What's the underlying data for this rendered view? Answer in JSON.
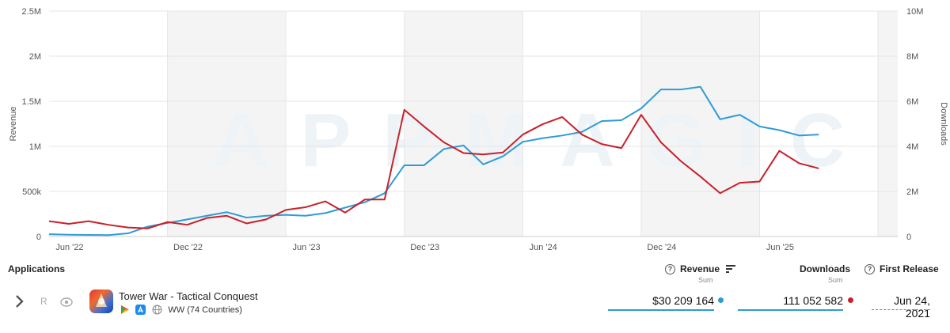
{
  "chart_data": {
    "type": "line",
    "watermark": "APPMAGIC",
    "x_tick_labels": [
      "Jun '22",
      "Dec '22",
      "Jun '23",
      "Dec '23",
      "Jun '24",
      "Dec '24",
      "Jun '25"
    ],
    "y_left": {
      "label": "Revenue",
      "ticks": [
        "0",
        "500k",
        "1M",
        "1.5M",
        "2M",
        "2.5M"
      ],
      "range": [
        0,
        2500000
      ]
    },
    "y_right": {
      "label": "Downloads",
      "ticks": [
        "0",
        "2M",
        "4M",
        "6M",
        "8M",
        "10M"
      ],
      "range": [
        0,
        10000000
      ]
    },
    "shaded_periods": [
      [
        6,
        12
      ],
      [
        18,
        24
      ],
      [
        30,
        36
      ],
      [
        42,
        43
      ]
    ],
    "month_range": [
      0,
      43
    ],
    "series": [
      {
        "name": "Revenue",
        "axis": "left",
        "color": "#2e9bd6",
        "x": [
          0,
          1,
          2,
          3,
          4,
          5,
          6,
          7,
          8,
          9,
          10,
          11,
          12,
          13,
          14,
          15,
          16,
          17,
          18,
          19,
          20,
          21,
          22,
          23,
          24,
          25,
          26,
          27,
          28,
          29,
          30,
          31,
          32,
          33,
          34,
          35,
          36,
          37,
          38,
          39,
          40,
          41,
          42,
          43
        ],
        "values": [
          25000,
          20000,
          18000,
          15000,
          35000,
          110000,
          150000,
          190000,
          230000,
          270000,
          210000,
          230000,
          240000,
          230000,
          260000,
          320000,
          380000,
          480000,
          790000,
          790000,
          970000,
          1010000,
          800000,
          890000,
          1050000,
          1090000,
          1120000,
          1160000,
          1280000,
          1290000,
          1420000,
          1630000,
          1630000,
          1660000,
          1300000,
          1350000,
          1220000,
          1180000,
          1120000,
          1130000,
          null,
          null,
          null,
          null
        ]
      },
      {
        "name": "Downloads",
        "axis": "right",
        "color": "#c8202a",
        "x": [
          0,
          1,
          2,
          3,
          4,
          5,
          6,
          7,
          8,
          9,
          10,
          11,
          12,
          13,
          14,
          15,
          16,
          17,
          18,
          19,
          20,
          21,
          22,
          23,
          24,
          25,
          26,
          27,
          28,
          29,
          30,
          31,
          32,
          33,
          34,
          35,
          36,
          37,
          38,
          39,
          40,
          41,
          42,
          43
        ],
        "values": [
          680000,
          560000,
          680000,
          520000,
          400000,
          360000,
          640000,
          520000,
          820000,
          920000,
          580000,
          760000,
          1180000,
          1300000,
          1560000,
          1060000,
          1640000,
          1640000,
          5620000,
          4880000,
          4180000,
          3700000,
          3640000,
          3730000,
          4520000,
          4980000,
          5300000,
          4520000,
          4100000,
          3920000,
          5400000,
          4180000,
          3350000,
          2660000,
          1920000,
          2380000,
          2440000,
          3800000,
          3250000,
          3020000,
          null,
          null,
          null,
          null
        ]
      }
    ]
  },
  "table": {
    "headers": {
      "applications": "Applications",
      "revenue": "Revenue",
      "revenue_sub": "Sum",
      "downloads": "Downloads",
      "downloads_sub": "Sum",
      "first_release": "First Release"
    },
    "row": {
      "expand_icon": "chevron-right-icon",
      "r_label": "R",
      "eye_icon": "eye-icon",
      "app_name": "Tower War - Tactical Conquest",
      "platforms": [
        "google-play-icon",
        "app-store-icon",
        "globe-icon"
      ],
      "region": "WW (74 Countries)",
      "revenue": "$30 209 164",
      "revenue_color": "#2e9bd6",
      "downloads": "111 052 582",
      "downloads_color": "#c8202a",
      "first_release": "Jun 24, 2021"
    }
  }
}
